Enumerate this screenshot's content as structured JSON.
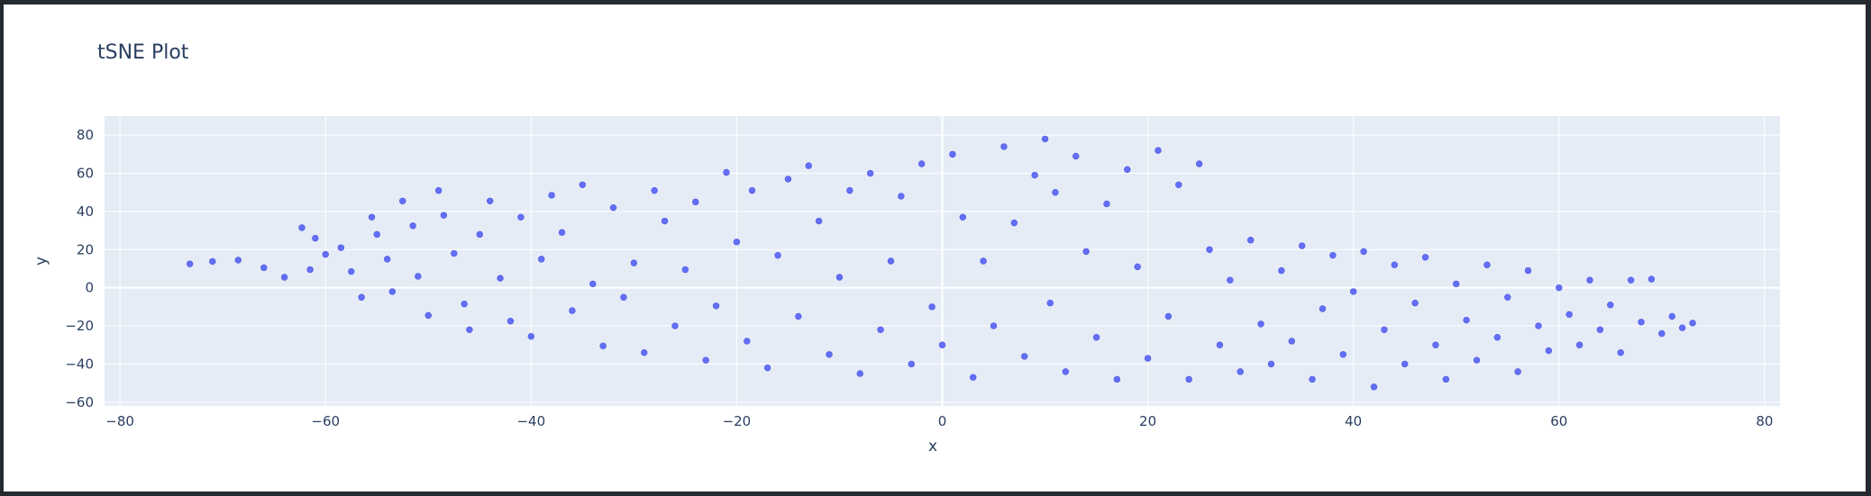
{
  "chart_data": {
    "type": "scatter",
    "title": "tSNE Plot",
    "xlabel": "x",
    "ylabel": "y",
    "xlim": [
      -81.5,
      81.5
    ],
    "ylim": [
      -62,
      90
    ],
    "xticks": [
      -80,
      -60,
      -40,
      -20,
      0,
      20,
      40,
      60,
      80
    ],
    "yticks": [
      -60,
      -40,
      -20,
      0,
      20,
      40,
      60,
      80
    ],
    "grid": true,
    "colors": {
      "marker": "#636efa",
      "plot_bg": "#e5ecf6",
      "grid": "#ffffff",
      "text": "#2a3f5f"
    },
    "series": [
      {
        "points": [
          [
            -73.2,
            12.5
          ],
          [
            -71.0,
            13.8
          ],
          [
            -68.5,
            14.5
          ],
          [
            -66.0,
            10.5
          ],
          [
            -64.0,
            5.5
          ],
          [
            -62.3,
            31.5
          ],
          [
            -61.0,
            26.0
          ],
          [
            -61.5,
            9.5
          ],
          [
            -60.0,
            17.5
          ],
          [
            -58.5,
            21.0
          ],
          [
            -57.5,
            8.5
          ],
          [
            -56.5,
            -5.0
          ],
          [
            -55.5,
            37.0
          ],
          [
            -55.0,
            28.0
          ],
          [
            -54.0,
            15.0
          ],
          [
            -53.5,
            -2.0
          ],
          [
            -52.5,
            45.5
          ],
          [
            -51.5,
            32.5
          ],
          [
            -51.0,
            6.0
          ],
          [
            -50.0,
            -14.5
          ],
          [
            -49.0,
            51.0
          ],
          [
            -48.5,
            38.0
          ],
          [
            -47.5,
            18.0
          ],
          [
            -46.5,
            -8.5
          ],
          [
            -46.0,
            -22.0
          ],
          [
            -45.0,
            28.0
          ],
          [
            -44.0,
            45.5
          ],
          [
            -43.0,
            5.0
          ],
          [
            -42.0,
            -17.5
          ],
          [
            -41.0,
            37.0
          ],
          [
            -40.0,
            -25.5
          ],
          [
            -39.0,
            15.0
          ],
          [
            -38.0,
            48.5
          ],
          [
            -37.0,
            29.0
          ],
          [
            -36.0,
            -12.0
          ],
          [
            -35.0,
            54.0
          ],
          [
            -34.0,
            2.0
          ],
          [
            -33.0,
            -30.5
          ],
          [
            -32.0,
            42.0
          ],
          [
            -31.0,
            -5.0
          ],
          [
            -30.0,
            13.0
          ],
          [
            -29.0,
            -34.0
          ],
          [
            -28.0,
            51.0
          ],
          [
            -27.0,
            35.0
          ],
          [
            -26.0,
            -20.0
          ],
          [
            -25.0,
            9.5
          ],
          [
            -24.0,
            45.0
          ],
          [
            -23.0,
            -38.0
          ],
          [
            -22.0,
            -9.5
          ],
          [
            -21.0,
            60.5
          ],
          [
            -20.0,
            24.0
          ],
          [
            -19.0,
            -28.0
          ],
          [
            -18.5,
            51.0
          ],
          [
            -17.0,
            -42.0
          ],
          [
            -16.0,
            17.0
          ],
          [
            -15.0,
            57.0
          ],
          [
            -14.0,
            -15.0
          ],
          [
            -13.0,
            64.0
          ],
          [
            -12.0,
            35.0
          ],
          [
            -11.0,
            -35.0
          ],
          [
            -10.0,
            5.5
          ],
          [
            -9.0,
            51.0
          ],
          [
            -8.0,
            -45.0
          ],
          [
            -7.0,
            60.0
          ],
          [
            -6.0,
            -22.0
          ],
          [
            -5.0,
            14.0
          ],
          [
            -4.0,
            48.0
          ],
          [
            -3.0,
            -40.0
          ],
          [
            -2.0,
            65.0
          ],
          [
            -1.0,
            -10.0
          ],
          [
            0.0,
            -30.0
          ],
          [
            1.0,
            70.0
          ],
          [
            2.0,
            37.0
          ],
          [
            3.0,
            -47.0
          ],
          [
            4.0,
            14.0
          ],
          [
            5.0,
            -20.0
          ],
          [
            6.0,
            74.0
          ],
          [
            7.0,
            34.0
          ],
          [
            8.0,
            -36.0
          ],
          [
            9.0,
            59.0
          ],
          [
            10.0,
            78.0
          ],
          [
            10.5,
            -8.0
          ],
          [
            11.0,
            50.0
          ],
          [
            12.0,
            -44.0
          ],
          [
            13.0,
            69.0
          ],
          [
            14.0,
            19.0
          ],
          [
            15.0,
            -26.0
          ],
          [
            16.0,
            44.0
          ],
          [
            17.0,
            -48.0
          ],
          [
            18.0,
            62.0
          ],
          [
            19.0,
            11.0
          ],
          [
            20.0,
            -37.0
          ],
          [
            21.0,
            72.0
          ],
          [
            22.0,
            -15.0
          ],
          [
            23.0,
            54.0
          ],
          [
            24.0,
            -48.0
          ],
          [
            25.0,
            65.0
          ],
          [
            26.0,
            20.0
          ],
          [
            27.0,
            -30.0
          ],
          [
            28.0,
            4.0
          ],
          [
            29.0,
            -44.0
          ],
          [
            30.0,
            25.0
          ],
          [
            31.0,
            -19.0
          ],
          [
            32.0,
            -40.0
          ],
          [
            33.0,
            9.0
          ],
          [
            34.0,
            -28.0
          ],
          [
            35.0,
            22.0
          ],
          [
            36.0,
            -48.0
          ],
          [
            37.0,
            -11.0
          ],
          [
            38.0,
            17.0
          ],
          [
            39.0,
            -35.0
          ],
          [
            40.0,
            -2.0
          ],
          [
            41.0,
            19.0
          ],
          [
            42.0,
            -52.0
          ],
          [
            43.0,
            -22.0
          ],
          [
            44.0,
            12.0
          ],
          [
            45.0,
            -40.0
          ],
          [
            46.0,
            -8.0
          ],
          [
            47.0,
            16.0
          ],
          [
            48.0,
            -30.0
          ],
          [
            49.0,
            -48.0
          ],
          [
            50.0,
            2.0
          ],
          [
            51.0,
            -17.0
          ],
          [
            52.0,
            -38.0
          ],
          [
            53.0,
            12.0
          ],
          [
            54.0,
            -26.0
          ],
          [
            55.0,
            -5.0
          ],
          [
            56.0,
            -44.0
          ],
          [
            57.0,
            9.0
          ],
          [
            58.0,
            -20.0
          ],
          [
            59.0,
            -33.0
          ],
          [
            60.0,
            0.0
          ],
          [
            61.0,
            -14.0
          ],
          [
            62.0,
            -30.0
          ],
          [
            63.0,
            4.0
          ],
          [
            64.0,
            -22.0
          ],
          [
            65.0,
            -9.0
          ],
          [
            66.0,
            -34.0
          ],
          [
            67.0,
            4.0
          ],
          [
            68.0,
            -18.0
          ],
          [
            69.0,
            4.5
          ],
          [
            70.0,
            -24.0
          ],
          [
            71.0,
            -15.0
          ],
          [
            72.0,
            -21.0
          ],
          [
            73.0,
            -18.5
          ]
        ]
      }
    ]
  }
}
